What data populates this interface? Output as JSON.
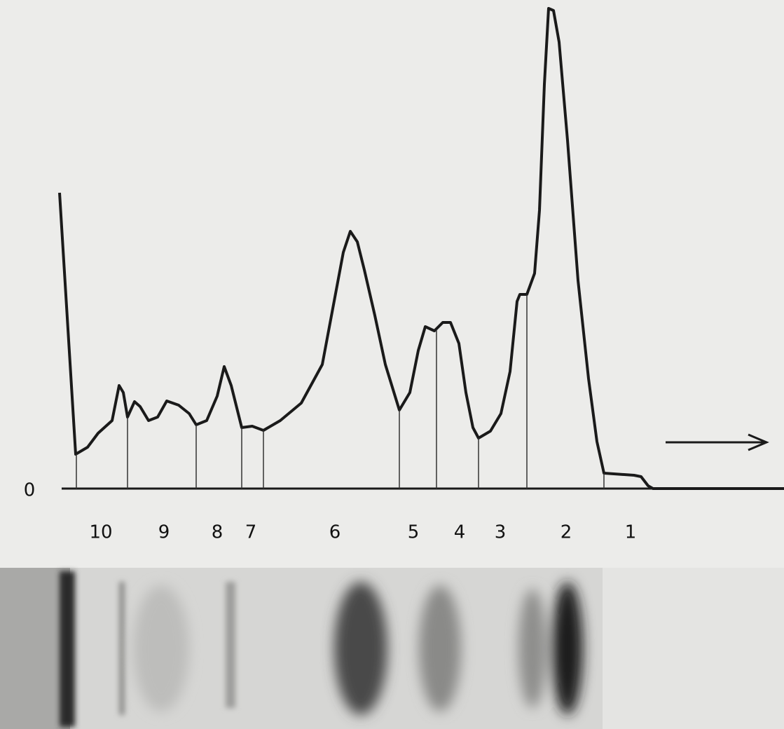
{
  "baseline_label": "0",
  "fractions": [
    "10",
    "9",
    "8",
    "7",
    "6",
    "5",
    "4",
    "3",
    "2",
    "1"
  ]
}
